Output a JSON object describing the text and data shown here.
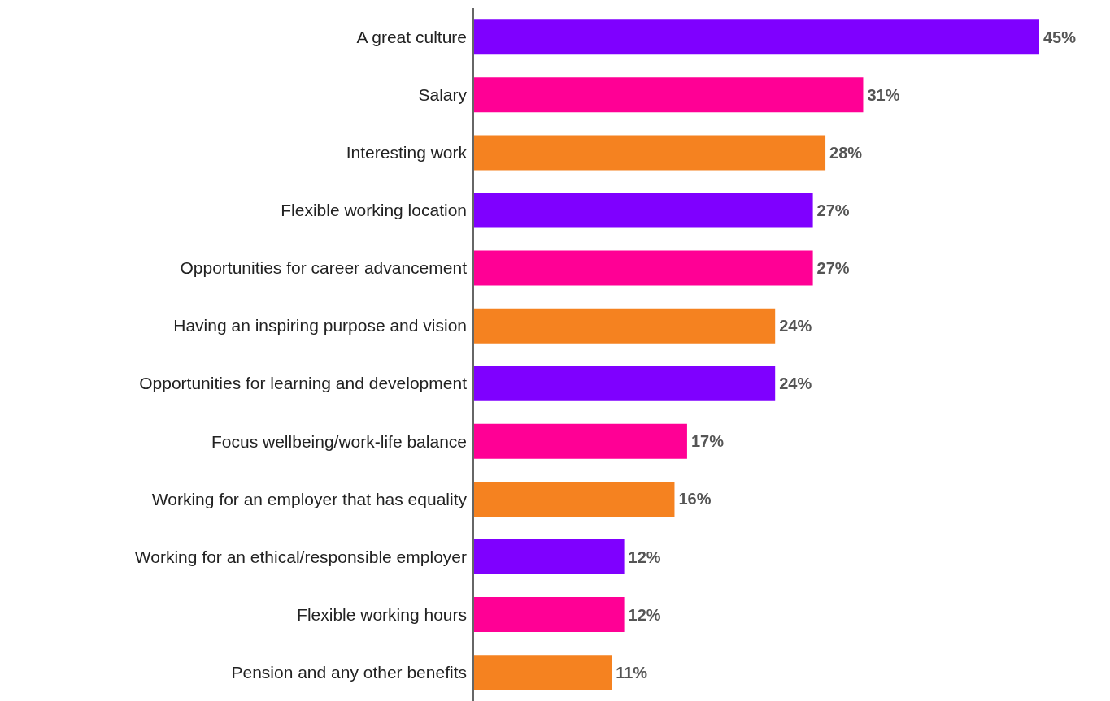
{
  "chart_data": {
    "type": "bar",
    "orientation": "horizontal",
    "categories": [
      "A great culture",
      "Salary",
      "Interesting work",
      "Flexible working location",
      "Opportunities for career advancement",
      "Having an inspiring purpose and vision",
      "Opportunities for learning and development",
      "Focus wellbeing/work-life balance",
      "Working for an employer that has equality",
      "Working for an ethical/responsible employer",
      "Flexible working hours",
      "Pension and any other benefits"
    ],
    "values": [
      45,
      31,
      28,
      27,
      27,
      24,
      24,
      17,
      16,
      12,
      12,
      11
    ],
    "value_labels": [
      "45%",
      "31%",
      "28%",
      "27%",
      "27%",
      "24%",
      "24%",
      "17%",
      "16%",
      "12%",
      "12%",
      "11%"
    ],
    "colors": [
      "#7f00ff",
      "#ff0095",
      "#f58220",
      "#7f00ff",
      "#ff0095",
      "#f58220",
      "#7f00ff",
      "#ff0095",
      "#f58220",
      "#7f00ff",
      "#ff0095",
      "#f58220"
    ]
  }
}
